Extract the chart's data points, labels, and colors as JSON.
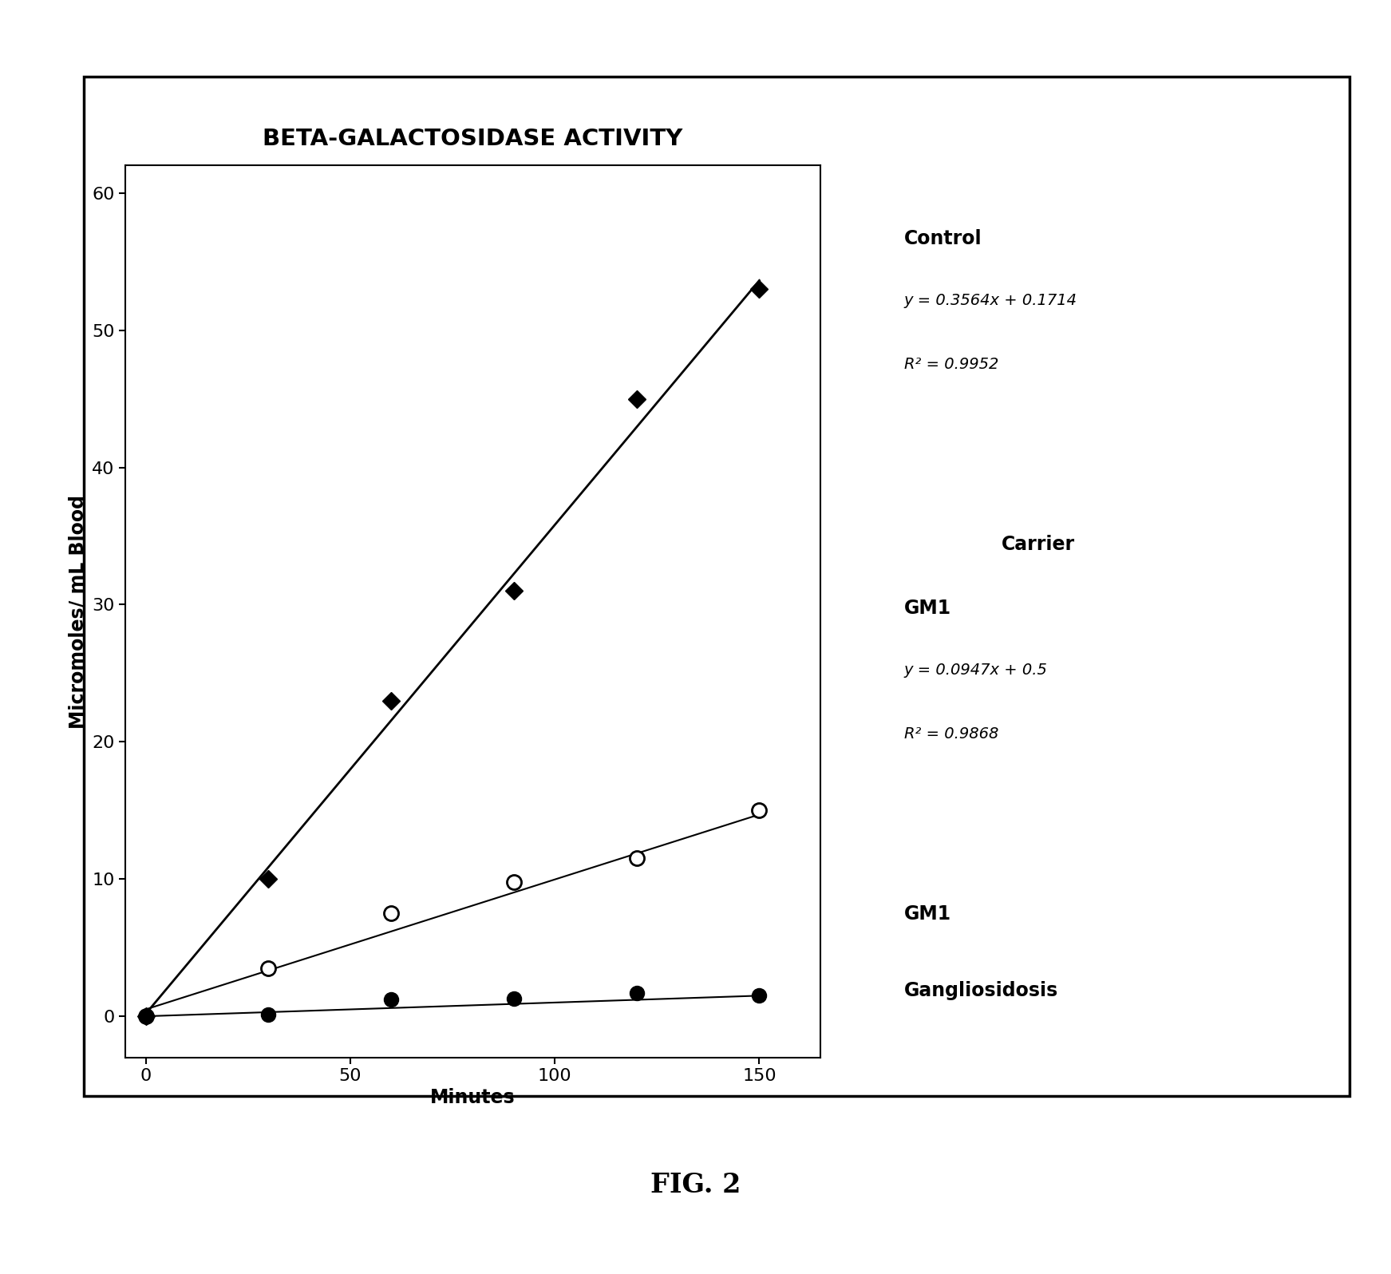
{
  "title": "BETA-GALACTOSIDASE ACTIVITY",
  "xlabel": "Minutes",
  "ylabel": "Micromoles/ mL Blood",
  "xlim": [
    -5,
    165
  ],
  "ylim": [
    -3,
    62
  ],
  "xticks": [
    0,
    50,
    100,
    150
  ],
  "yticks": [
    0,
    10,
    20,
    30,
    40,
    50,
    60
  ],
  "control": {
    "x": [
      0,
      30,
      60,
      90,
      120,
      150
    ],
    "y": [
      0,
      10,
      23,
      31,
      45,
      53
    ],
    "label": "Control",
    "eq": "y = 0.3564x + 0.1714",
    "r2": "R² = 0.9952",
    "slope": 0.3564,
    "intercept": 0.1714,
    "marker": "D",
    "markersize": 11
  },
  "carrier": {
    "x": [
      0,
      30,
      60,
      90,
      120,
      150
    ],
    "y": [
      0,
      3.5,
      7.5,
      9.8,
      11.5,
      15
    ],
    "label": "GM1 Carrier",
    "eq": "y = 0.0947x + 0.5",
    "r2": "R² = 0.9868",
    "slope": 0.0947,
    "intercept": 0.5,
    "marker": "o",
    "markersize": 13
  },
  "gangliosidosis": {
    "x": [
      0,
      30,
      60,
      90,
      120,
      150
    ],
    "y": [
      0,
      0.1,
      1.2,
      1.3,
      1.7,
      1.5
    ],
    "label": "GM1 Gangliosidosis",
    "slope": 0.01,
    "intercept": 0.0,
    "marker": "o",
    "markersize": 13
  },
  "fig_label": "FIG. 2",
  "background_color": "white",
  "title_fontsize": 21,
  "axis_label_fontsize": 17,
  "tick_fontsize": 16,
  "annotation_fontsize": 14,
  "legend_label_fontsize": 17
}
